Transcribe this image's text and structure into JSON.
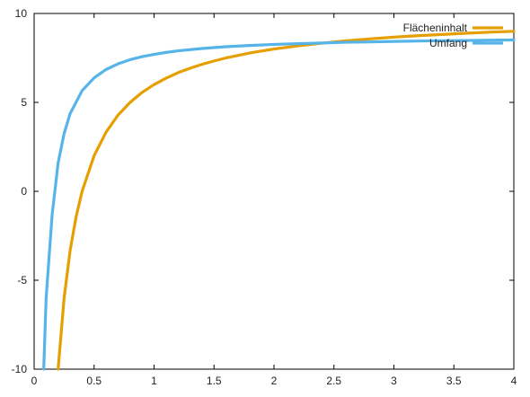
{
  "chart_data": {
    "type": "line",
    "title": "",
    "xlabel": "",
    "ylabel": "",
    "xlim": [
      0,
      4
    ],
    "ylim": [
      -10,
      10
    ],
    "xticks": [
      "0",
      "0.5",
      "1",
      "1.5",
      "2",
      "2.5",
      "3",
      "3.5",
      "4"
    ],
    "yticks": [
      "-10",
      "-5",
      "0",
      "5",
      "10"
    ],
    "grid": false,
    "legend_position": "top-right",
    "series": [
      {
        "name": "Flächeninhalt",
        "color": "#e69f00",
        "x": [
          0.2,
          0.25,
          0.3,
          0.35,
          0.4,
          0.5,
          0.6,
          0.7,
          0.8,
          0.9,
          1.0,
          1.1,
          1.2,
          1.3,
          1.4,
          1.5,
          1.6,
          1.8,
          2.0,
          2.2,
          2.4,
          2.6,
          2.8,
          3.0,
          3.2,
          3.4,
          3.6,
          3.8,
          4.0
        ],
        "y": [
          -10.0,
          -6.0,
          -3.33,
          -1.43,
          0.0,
          2.0,
          3.33,
          4.29,
          5.0,
          5.56,
          6.0,
          6.36,
          6.67,
          6.92,
          7.14,
          7.33,
          7.5,
          7.78,
          8.0,
          8.18,
          8.33,
          8.46,
          8.57,
          8.67,
          8.75,
          8.82,
          8.89,
          8.95,
          9.0
        ]
      },
      {
        "name": "Umfang",
        "color": "#56b4e9",
        "x": [
          0.08,
          0.1,
          0.15,
          0.2,
          0.25,
          0.3,
          0.4,
          0.5,
          0.6,
          0.7,
          0.8,
          0.9,
          1.0,
          1.1,
          1.2,
          1.4,
          1.6,
          1.8,
          2.0,
          2.2,
          2.4,
          2.6,
          2.8,
          3.0,
          3.2,
          3.4,
          3.6,
          3.8,
          4.0
        ],
        "y": [
          -10.0,
          -6.0,
          -1.33,
          1.6,
          3.25,
          4.37,
          5.66,
          6.38,
          6.85,
          7.17,
          7.4,
          7.57,
          7.7,
          7.81,
          7.9,
          8.03,
          8.13,
          8.2,
          8.26,
          8.3,
          8.34,
          8.38,
          8.4,
          8.43,
          8.45,
          8.47,
          8.48,
          8.5,
          8.51
        ]
      }
    ]
  }
}
